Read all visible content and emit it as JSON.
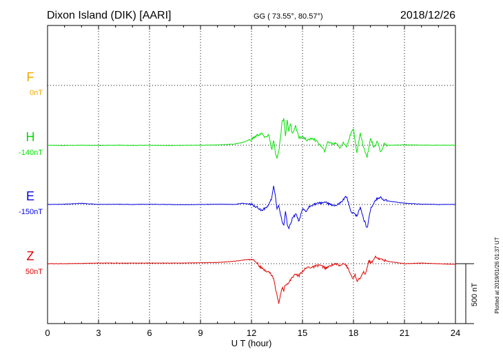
{
  "header": {
    "title": "Dixon Island (DIK)  [AARI]",
    "coords": "GG ( 73.55°,  80.57°)",
    "date": "2018/12/26"
  },
  "footer": {
    "plotted": "Plotted at 2019/01/26 01:37 UT"
  },
  "chart_data": {
    "type": "line",
    "xlabel": "U T (hour)",
    "xlim": [
      0,
      24
    ],
    "xticks": [
      0,
      3,
      6,
      9,
      12,
      15,
      18,
      21,
      24
    ],
    "scale_label": "500 nT",
    "scale_nT": 500,
    "grid": true,
    "series": [
      {
        "name": "F",
        "baseline_label": "0nT",
        "color": "#f0a800",
        "points": []
      },
      {
        "name": "H",
        "baseline_label": "-140nT",
        "color": "#00e000",
        "points": [
          [
            0,
            0
          ],
          [
            1,
            -2
          ],
          [
            2,
            0
          ],
          [
            3,
            -2
          ],
          [
            4,
            0
          ],
          [
            5,
            -1
          ],
          [
            6,
            0
          ],
          [
            7,
            -2
          ],
          [
            8,
            -1
          ],
          [
            9,
            0
          ],
          [
            10,
            3
          ],
          [
            11,
            10
          ],
          [
            11.5,
            25
          ],
          [
            12,
            50
          ],
          [
            12.3,
            80
          ],
          [
            12.6,
            100
          ],
          [
            12.8,
            60
          ],
          [
            13,
            90
          ],
          [
            13.1,
            30
          ],
          [
            13.2,
            -40
          ],
          [
            13.3,
            40
          ],
          [
            13.4,
            -60
          ],
          [
            13.5,
            -110
          ],
          [
            13.6,
            -60
          ],
          [
            13.7,
            60
          ],
          [
            13.8,
            200
          ],
          [
            13.9,
            220
          ],
          [
            14.0,
            80
          ],
          [
            14.1,
            210
          ],
          [
            14.2,
            120
          ],
          [
            14.3,
            180
          ],
          [
            14.4,
            100
          ],
          [
            14.6,
            160
          ],
          [
            14.8,
            60
          ],
          [
            15.0,
            70
          ],
          [
            15.3,
            40
          ],
          [
            15.6,
            60
          ],
          [
            16,
            10
          ],
          [
            16.3,
            -50
          ],
          [
            16.5,
            30
          ],
          [
            16.8,
            10
          ],
          [
            17,
            20
          ],
          [
            17.2,
            -20
          ],
          [
            17.4,
            20
          ],
          [
            17.6,
            -10
          ],
          [
            17.8,
            80
          ],
          [
            18.0,
            140
          ],
          [
            18.1,
            40
          ],
          [
            18.2,
            -60
          ],
          [
            18.4,
            100
          ],
          [
            18.6,
            -20
          ],
          [
            18.8,
            -100
          ],
          [
            19.0,
            60
          ],
          [
            19.2,
            -20
          ],
          [
            19.4,
            40
          ],
          [
            19.6,
            -60
          ],
          [
            19.8,
            10
          ],
          [
            20,
            0
          ],
          [
            21,
            3
          ],
          [
            22,
            1
          ],
          [
            23,
            0
          ],
          [
            24,
            0
          ]
        ]
      },
      {
        "name": "E",
        "baseline_label": "-150nT",
        "color": "#0000e0",
        "points": [
          [
            0,
            0
          ],
          [
            1,
            2
          ],
          [
            2,
            10
          ],
          [
            2.5,
            5
          ],
          [
            3,
            0
          ],
          [
            4,
            2
          ],
          [
            5,
            0
          ],
          [
            6,
            2
          ],
          [
            7,
            0
          ],
          [
            8,
            -2
          ],
          [
            9,
            0
          ],
          [
            10,
            2
          ],
          [
            11,
            0
          ],
          [
            11.5,
            10
          ],
          [
            12,
            0
          ],
          [
            12.3,
            -20
          ],
          [
            12.6,
            -50
          ],
          [
            13,
            -10
          ],
          [
            13.1,
            20
          ],
          [
            13.2,
            60
          ],
          [
            13.3,
            150
          ],
          [
            13.4,
            80
          ],
          [
            13.5,
            -40
          ],
          [
            13.6,
            0
          ],
          [
            13.7,
            -80
          ],
          [
            13.8,
            -140
          ],
          [
            13.9,
            -180
          ],
          [
            14.0,
            -60
          ],
          [
            14.1,
            -160
          ],
          [
            14.2,
            -200
          ],
          [
            14.4,
            -120
          ],
          [
            14.6,
            -80
          ],
          [
            14.8,
            -140
          ],
          [
            15.0,
            -40
          ],
          [
            15.2,
            -60
          ],
          [
            15.4,
            -20
          ],
          [
            15.6,
            0
          ],
          [
            16,
            10
          ],
          [
            16.3,
            20
          ],
          [
            16.6,
            0
          ],
          [
            17,
            -10
          ],
          [
            17.3,
            20
          ],
          [
            17.6,
            70
          ],
          [
            17.8,
            -40
          ],
          [
            17.9,
            -80
          ],
          [
            18.0,
            -60
          ],
          [
            18.2,
            -100
          ],
          [
            18.4,
            -20
          ],
          [
            18.6,
            -120
          ],
          [
            18.8,
            -200
          ],
          [
            19.0,
            -40
          ],
          [
            19.3,
            40
          ],
          [
            19.6,
            60
          ],
          [
            19.8,
            40
          ],
          [
            20,
            30
          ],
          [
            20.5,
            20
          ],
          [
            21,
            10
          ],
          [
            22,
            3
          ],
          [
            23,
            0
          ],
          [
            24,
            0
          ]
        ]
      },
      {
        "name": "Z",
        "baseline_label": "50nT",
        "color": "#e00000",
        "points": [
          [
            0,
            0
          ],
          [
            1,
            0
          ],
          [
            2,
            2
          ],
          [
            3,
            5
          ],
          [
            4,
            5
          ],
          [
            5,
            5
          ],
          [
            6,
            5
          ],
          [
            7,
            5
          ],
          [
            8,
            5
          ],
          [
            9,
            8
          ],
          [
            10,
            10
          ],
          [
            11,
            20
          ],
          [
            11.5,
            30
          ],
          [
            12,
            40
          ],
          [
            12.3,
            10
          ],
          [
            12.6,
            -40
          ],
          [
            12.9,
            -60
          ],
          [
            13.1,
            -80
          ],
          [
            13.3,
            -120
          ],
          [
            13.4,
            -200
          ],
          [
            13.6,
            -330
          ],
          [
            13.7,
            -260
          ],
          [
            13.8,
            -200
          ],
          [
            13.9,
            -220
          ],
          [
            14.0,
            -170
          ],
          [
            14.2,
            -160
          ],
          [
            14.4,
            -110
          ],
          [
            14.6,
            -90
          ],
          [
            14.8,
            -100
          ],
          [
            15,
            -60
          ],
          [
            15.3,
            -30
          ],
          [
            15.6,
            -30
          ],
          [
            16,
            -10
          ],
          [
            16.4,
            -40
          ],
          [
            16.7,
            -10
          ],
          [
            17,
            0
          ],
          [
            17.2,
            -20
          ],
          [
            17.4,
            10
          ],
          [
            17.6,
            -20
          ],
          [
            17.8,
            -80
          ],
          [
            18.0,
            -130
          ],
          [
            18.1,
            -90
          ],
          [
            18.2,
            -150
          ],
          [
            18.4,
            -120
          ],
          [
            18.6,
            -70
          ],
          [
            18.7,
            -90
          ],
          [
            18.9,
            20
          ],
          [
            19.1,
            10
          ],
          [
            19.3,
            60
          ],
          [
            19.5,
            40
          ],
          [
            19.8,
            30
          ],
          [
            20,
            20
          ],
          [
            21,
            0
          ],
          [
            22,
            5
          ],
          [
            23,
            0
          ],
          [
            24,
            -5
          ]
        ]
      }
    ]
  }
}
